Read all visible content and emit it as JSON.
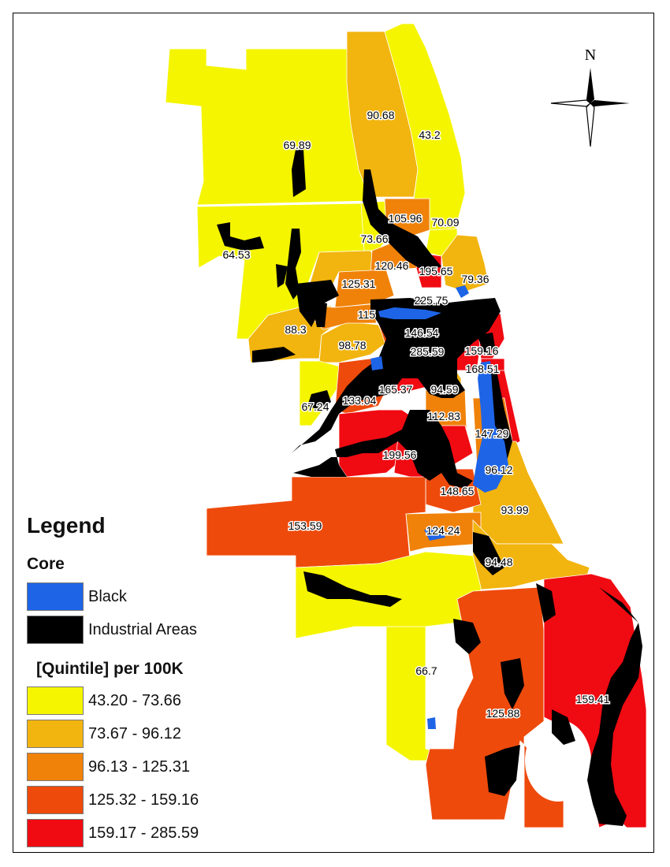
{
  "compass": {
    "north_label": "N"
  },
  "colors": {
    "q1": "#f5f500",
    "q2": "#f2b40e",
    "q3": "#f0820a",
    "q4": "#ee4a0c",
    "q5": "#f00a12",
    "black_core": "#1e64e6",
    "industrial": "#000000"
  },
  "legend": {
    "title": "Legend",
    "core_heading": "Core",
    "core_items": [
      {
        "label": "Black",
        "color": "#1e64e6"
      },
      {
        "label": "Industrial Areas",
        "color": "#000000"
      }
    ],
    "quintile_heading": "[Quintile] per 100K",
    "quintiles": [
      {
        "label": "43.20 - 73.66",
        "color": "#f5f500"
      },
      {
        "label": "73.67 - 96.12",
        "color": "#f2b40e"
      },
      {
        "label": "96.13 - 125.31",
        "color": "#f0820a"
      },
      {
        "label": "125.32 - 159.16",
        "color": "#ee4a0c"
      },
      {
        "label": "159.17 - 285.59",
        "color": "#f00a12"
      }
    ]
  },
  "region_values": [
    "90.68",
    "43.2",
    "69.89",
    "105.96",
    "70.09",
    "73.66",
    "64.53",
    "120.46",
    "195.65",
    "79.36",
    "125.31",
    "225.75",
    "115",
    "88.3",
    "146.54",
    "98.78",
    "285.59",
    "159.16",
    "168.51",
    "165.37",
    "94.59",
    "67.24",
    "133.04",
    "112.83",
    "147.29",
    "199.56",
    "96.12",
    "148.65",
    "93.99",
    "153.59",
    "124.24",
    "94.48",
    "66.7",
    "125.88",
    "159.41"
  ]
}
